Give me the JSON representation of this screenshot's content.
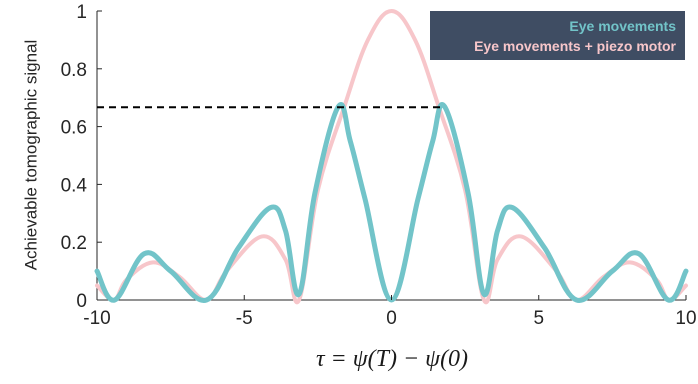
{
  "chart_data": {
    "type": "line",
    "xlabel": "τ = ψ(T) − ψ(0)",
    "ylabel": "Achievable tomographic signal",
    "xlim": [
      -10,
      10
    ],
    "ylim": [
      0,
      1
    ],
    "x_ticks": [
      -10,
      -5,
      0,
      5,
      10
    ],
    "y_ticks": [
      0,
      0.2,
      0.4,
      0.6,
      0.8,
      1
    ],
    "x_tick_labels": [
      "-10",
      "-5",
      "0",
      "5",
      "10"
    ],
    "y_tick_labels": [
      "0",
      "0.2",
      "0.4",
      "0.6",
      "0.8",
      "1"
    ],
    "grid": false,
    "legend_position": "top-right",
    "legend_background": "#3f4d63",
    "series": [
      {
        "name": "Eye movements",
        "color": "#72c4c9",
        "x": [
          -10,
          -9.4,
          -8.4,
          -7.5,
          -6.28,
          -5.2,
          -4.1,
          -3.6,
          -3.14,
          -2.6,
          -1.8,
          -1.4,
          -0.9,
          0,
          0.9,
          1.4,
          1.8,
          2.6,
          3.14,
          3.6,
          4.1,
          5.2,
          6.28,
          7.5,
          8.4,
          9.4,
          10
        ],
        "y": [
          0.1,
          0.0,
          0.16,
          0.1,
          0.0,
          0.18,
          0.32,
          0.24,
          0.02,
          0.37,
          0.67,
          0.55,
          0.35,
          0.0,
          0.35,
          0.55,
          0.67,
          0.37,
          0.02,
          0.24,
          0.32,
          0.18,
          0.0,
          0.1,
          0.16,
          0.0,
          0.1
        ]
      },
      {
        "name": "Eye movements + piezo motor",
        "color": "#f7c6ca",
        "x": [
          -10,
          -9.42,
          -9.0,
          -8.1,
          -7.2,
          -6.28,
          -5.6,
          -4.4,
          -3.6,
          -3.14,
          -2.5,
          -1.6,
          -0.8,
          0,
          0.8,
          1.6,
          2.5,
          3.14,
          3.6,
          4.4,
          5.6,
          6.28,
          7.2,
          8.1,
          9.0,
          9.42,
          10
        ],
        "y": [
          0.05,
          0.0,
          0.07,
          0.13,
          0.08,
          0.0,
          0.1,
          0.22,
          0.14,
          0.0,
          0.38,
          0.67,
          0.9,
          1.0,
          0.9,
          0.67,
          0.38,
          0.0,
          0.14,
          0.22,
          0.1,
          0.0,
          0.08,
          0.13,
          0.07,
          0.0,
          0.05
        ]
      }
    ],
    "reference_line": {
      "style": "dashed",
      "color": "#000000",
      "y": 0.667,
      "x_start": -10,
      "x_end": 1.8
    }
  }
}
